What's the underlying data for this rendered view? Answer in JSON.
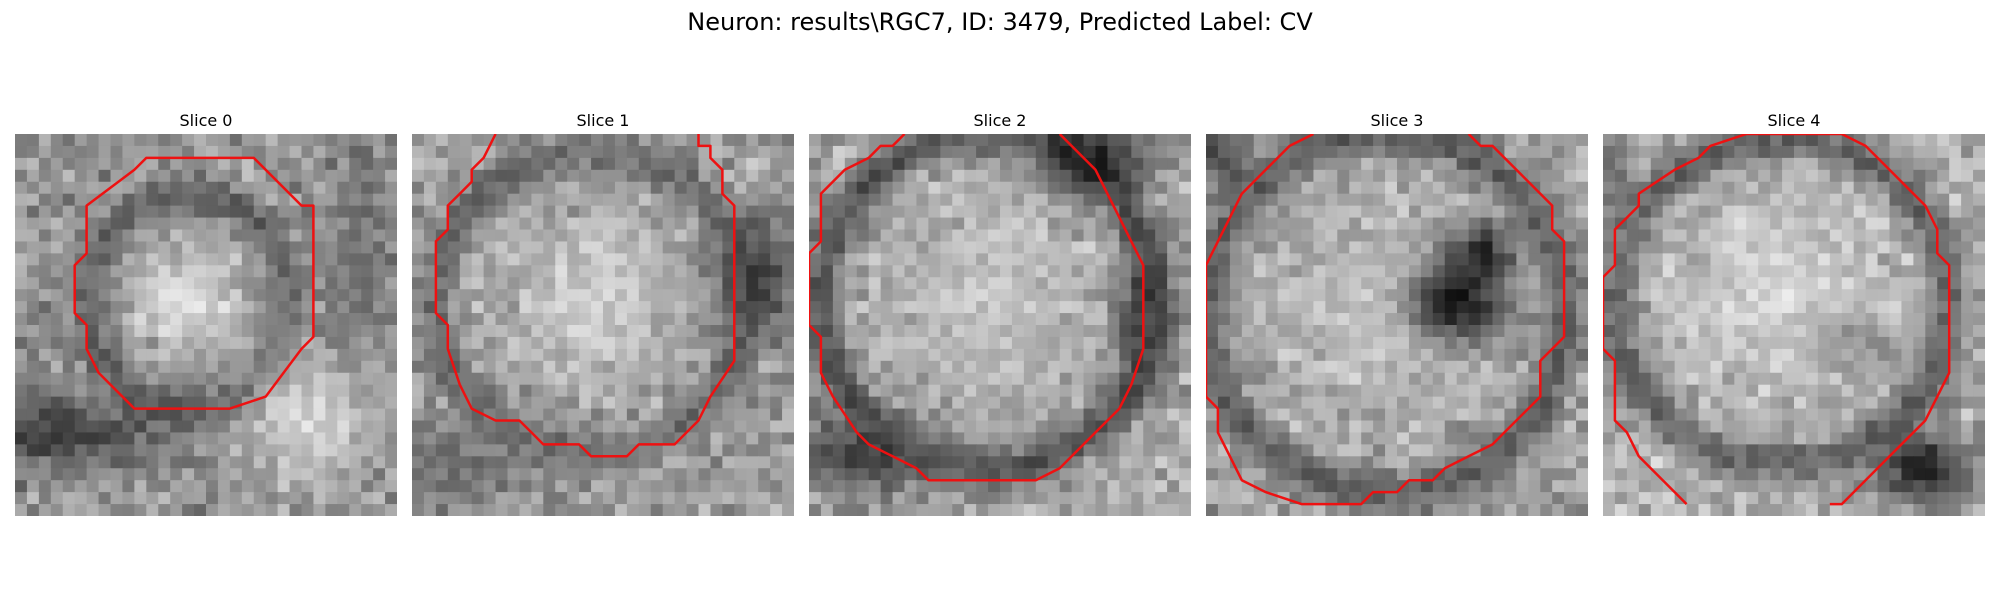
{
  "figure": {
    "title": "Neuron: results\\RGC7, ID: 3479, Predicted Label: CV"
  },
  "panels": [
    {
      "title": "Slice 0"
    },
    {
      "title": "Slice 1"
    },
    {
      "title": "Slice 2"
    },
    {
      "title": "Slice 3"
    },
    {
      "title": "Slice 4"
    }
  ],
  "style": {
    "contour_color": "#ee1111",
    "image_colormap": "grayscale"
  }
}
